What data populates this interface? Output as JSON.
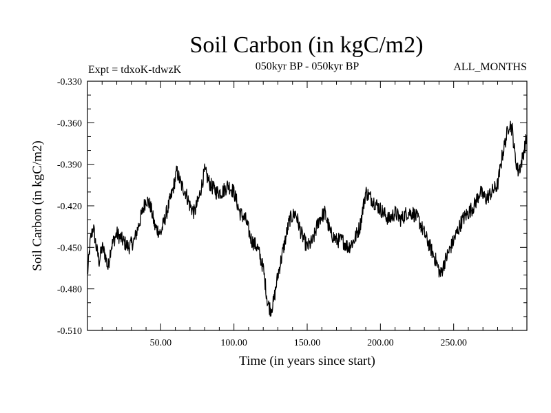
{
  "chart_data": {
    "type": "line",
    "title": "Soil Carbon (in kgC/m2)",
    "subtitle": "050kyr BP - 050kyr BP",
    "experiment": "Expt = tdxoK-tdwzK",
    "period": "ALL_MONTHS",
    "xlabel": "Time (in years since start)",
    "ylabel": "Soil Carbon (in kgC/m2)",
    "xlim": [
      0,
      300
    ],
    "ylim": [
      -0.51,
      -0.33
    ],
    "x_ticks": [
      50,
      100,
      150,
      200,
      250
    ],
    "x_tick_labels": [
      "50.00",
      "100.00",
      "150.00",
      "200.00",
      "250.00"
    ],
    "y_ticks": [
      -0.33,
      -0.36,
      -0.39,
      -0.42,
      -0.45,
      -0.48,
      -0.51
    ],
    "y_tick_labels": [
      "-0.330",
      "-0.360",
      "-0.390",
      "-0.420",
      "-0.450",
      "-0.480",
      "-0.510"
    ],
    "grid": false,
    "line_color": "#000000",
    "series": [
      {
        "x": [
          0,
          2,
          4,
          6,
          8,
          10,
          12,
          14,
          16,
          18,
          20,
          24,
          28,
          32,
          36,
          40,
          43,
          46,
          50,
          54,
          58,
          61,
          64,
          67,
          70,
          73,
          76,
          80,
          84,
          88,
          92,
          96,
          100,
          104,
          108,
          112,
          116,
          120,
          123,
          125,
          127,
          130,
          134,
          138,
          142,
          146,
          150,
          154,
          158,
          162,
          166,
          170,
          174,
          178,
          182,
          186,
          190,
          194,
          198,
          202,
          206,
          210,
          214,
          218,
          222,
          226,
          230,
          234,
          238,
          241,
          244,
          248,
          252,
          256,
          260,
          264,
          268,
          272,
          276,
          280,
          283,
          286,
          288,
          290,
          292,
          294,
          296,
          298,
          300
        ],
        "y": [
          -0.47,
          -0.445,
          -0.435,
          -0.45,
          -0.46,
          -0.45,
          -0.455,
          -0.465,
          -0.45,
          -0.445,
          -0.44,
          -0.445,
          -0.45,
          -0.445,
          -0.43,
          -0.415,
          -0.42,
          -0.435,
          -0.44,
          -0.425,
          -0.41,
          -0.395,
          -0.405,
          -0.41,
          -0.42,
          -0.425,
          -0.415,
          -0.395,
          -0.405,
          -0.41,
          -0.41,
          -0.405,
          -0.41,
          -0.425,
          -0.43,
          -0.445,
          -0.45,
          -0.465,
          -0.49,
          -0.495,
          -0.49,
          -0.47,
          -0.45,
          -0.43,
          -0.425,
          -0.44,
          -0.45,
          -0.445,
          -0.43,
          -0.425,
          -0.44,
          -0.445,
          -0.445,
          -0.45,
          -0.445,
          -0.435,
          -0.41,
          -0.415,
          -0.42,
          -0.425,
          -0.43,
          -0.425,
          -0.43,
          -0.425,
          -0.425,
          -0.43,
          -0.44,
          -0.45,
          -0.46,
          -0.47,
          -0.46,
          -0.45,
          -0.44,
          -0.43,
          -0.425,
          -0.42,
          -0.41,
          -0.415,
          -0.41,
          -0.405,
          -0.385,
          -0.37,
          -0.36,
          -0.365,
          -0.385,
          -0.395,
          -0.39,
          -0.38,
          -0.37
        ]
      }
    ]
  }
}
